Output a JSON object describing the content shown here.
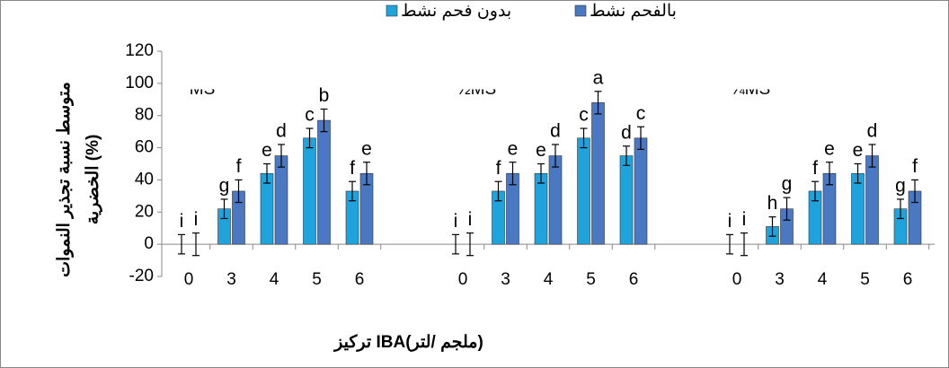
{
  "chart_data": {
    "type": "bar",
    "legend": "top",
    "groups": [
      "MS",
      "½MS",
      "¼MS"
    ],
    "categories": [
      "0",
      "3",
      "4",
      "5",
      "6",
      "0",
      "3",
      "4",
      "5",
      "6",
      "0",
      "3",
      "4",
      "5",
      "6"
    ],
    "ylabel": [
      "متوسط نسبة تجذير النموات",
      "الخضرية (%)"
    ],
    "xlabel": "تركيز IBA(ملجم /لتر)",
    "ylim": [
      -20,
      120
    ],
    "yticks": [
      -20,
      0,
      20,
      40,
      60,
      80,
      100,
      120
    ],
    "series": [
      {
        "name": "بدون فحم نشط",
        "color": "#1fa3dd",
        "values": [
          0,
          22,
          44,
          66,
          33,
          0,
          33,
          44,
          66,
          55,
          0,
          11,
          33,
          44,
          22
        ],
        "errors": [
          6,
          6,
          6,
          6,
          6,
          6,
          6,
          6,
          6,
          6,
          6,
          6,
          6,
          6,
          6
        ],
        "letters": [
          "i",
          "g",
          "e",
          "c",
          "f",
          "i",
          "f",
          "e",
          "c",
          "d",
          "i",
          "h",
          "f",
          "e",
          "g"
        ]
      },
      {
        "name": "بالفحم نشط",
        "color": "#4a78c2",
        "values": [
          0,
          33,
          55,
          77,
          44,
          0,
          44,
          55,
          88,
          66,
          0,
          22,
          44,
          55,
          33
        ],
        "errors": [
          7,
          7,
          7,
          7,
          7,
          7,
          7,
          7,
          7,
          7,
          7,
          7,
          7,
          7,
          7
        ],
        "letters": [
          "i",
          "f",
          "d",
          "b",
          "e",
          "i",
          "e",
          "d",
          "a",
          "c",
          "i",
          "g",
          "e",
          "d",
          "f"
        ]
      }
    ]
  }
}
